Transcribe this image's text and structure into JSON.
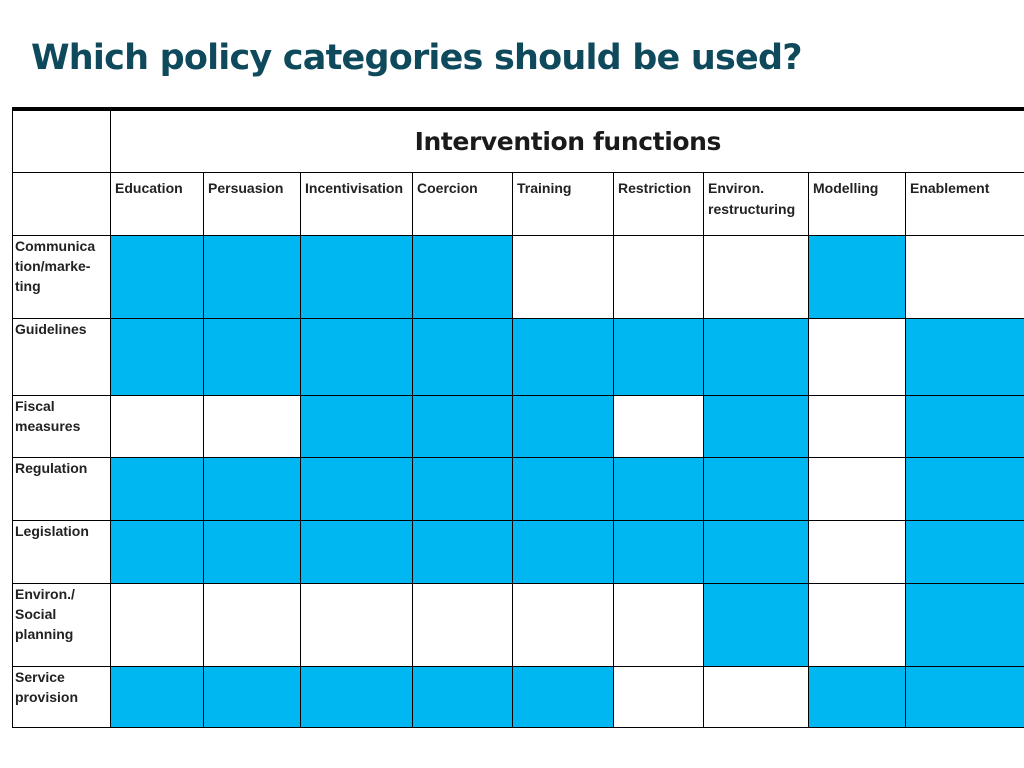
{
  "slide": {
    "title": "Which policy categories should be used?"
  },
  "table": {
    "header": "Intervention functions",
    "functions": [
      "Education",
      "Persuasion",
      "Incentivisation",
      "Coercion",
      "Training",
      "Restriction",
      "Environ. restructuring",
      "Modelling",
      "Enablement"
    ],
    "rows": [
      {
        "policy": "Communica tion/marke- ting",
        "marked": [
          true,
          true,
          true,
          true,
          false,
          false,
          false,
          true,
          false
        ]
      },
      {
        "policy": "Guidelines",
        "marked": [
          true,
          true,
          true,
          true,
          true,
          true,
          true,
          false,
          true
        ]
      },
      {
        "policy": "Fiscal measures",
        "marked": [
          false,
          false,
          true,
          true,
          true,
          false,
          true,
          false,
          true
        ]
      },
      {
        "policy": "Regulation",
        "marked": [
          true,
          true,
          true,
          true,
          true,
          true,
          true,
          false,
          true
        ]
      },
      {
        "policy": "Legislation",
        "marked": [
          true,
          true,
          true,
          true,
          true,
          true,
          true,
          false,
          true
        ]
      },
      {
        "policy": "Environ./ Social planning",
        "marked": [
          false,
          false,
          false,
          false,
          false,
          false,
          true,
          false,
          true
        ]
      },
      {
        "policy": "Service provision",
        "marked": [
          true,
          true,
          true,
          true,
          true,
          false,
          false,
          true,
          true
        ]
      }
    ]
  },
  "colors": {
    "title": "#0f4a5c",
    "highlight": "#00b7f2"
  }
}
